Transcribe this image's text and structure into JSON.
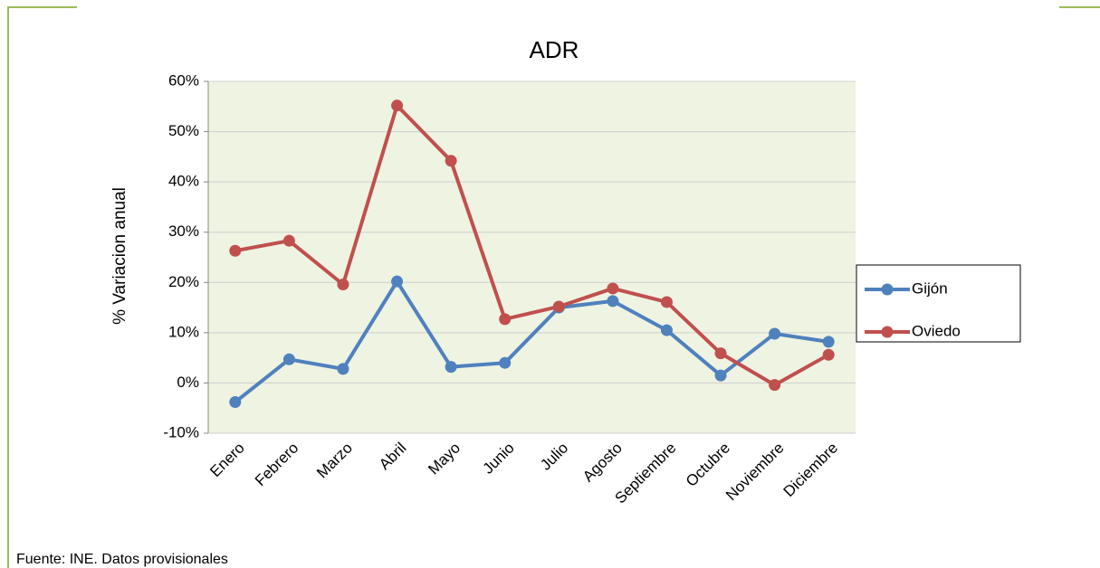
{
  "chart_data": {
    "type": "line",
    "title": "ADR",
    "y_label": "% Variacion anual",
    "categories": [
      "Enero",
      "Febrero",
      "Marzo",
      "Abril",
      "Mayo",
      "Junio",
      "Julio",
      "Agosto",
      "Septiembre",
      "Octubre",
      "Noviembre",
      "Diciembre"
    ],
    "series": [
      {
        "name": "Gijón",
        "color": "#4f81bd",
        "values": [
          -3.8,
          4.7,
          2.8,
          20.2,
          3.2,
          4.0,
          15.0,
          16.3,
          10.5,
          1.5,
          9.8,
          8.2
        ]
      },
      {
        "name": "Oviedo",
        "color": "#c0504d",
        "values": [
          26.3,
          28.3,
          19.6,
          55.2,
          44.2,
          12.7,
          15.2,
          18.8,
          16.1,
          5.9,
          -0.4,
          5.6
        ]
      }
    ],
    "ylim": [
      -10,
      60
    ],
    "yticks": [
      {
        "value": -10,
        "label": "-10%"
      },
      {
        "value": 0,
        "label": "0%"
      },
      {
        "value": 10,
        "label": "10%"
      },
      {
        "value": 20,
        "label": "20%"
      },
      {
        "value": 30,
        "label": "30%"
      },
      {
        "value": 40,
        "label": "40%"
      },
      {
        "value": 50,
        "label": "50%"
      },
      {
        "value": 60,
        "label": "60%"
      }
    ],
    "grid": true,
    "legend": "right",
    "plot_background": "#eef3e2"
  },
  "source": "Fuente: INE. Datos provisionales"
}
